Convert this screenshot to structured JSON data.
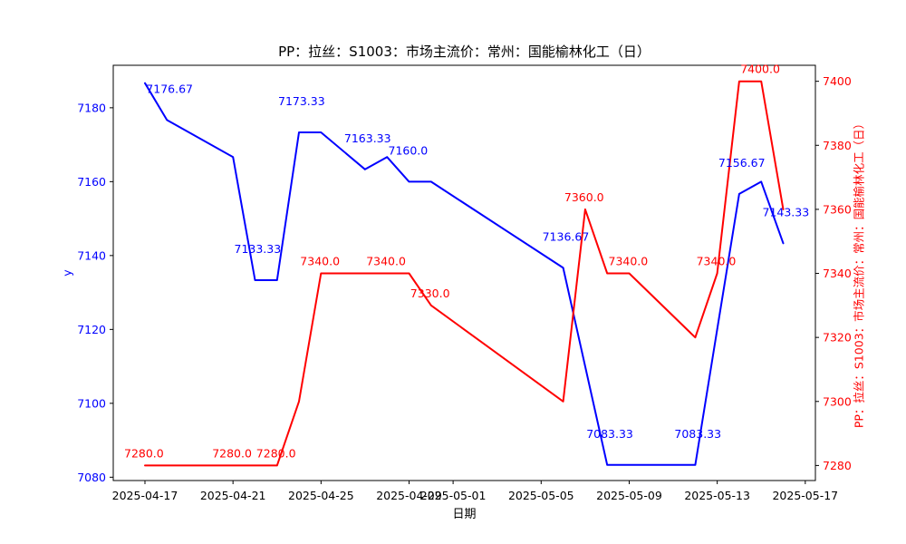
{
  "chart_data": {
    "type": "line",
    "title": "PP：拉丝：S1003：市场主流价：常州：国能榆林化工（日）",
    "xlabel": "日期",
    "ylabel_left": "y",
    "ylabel_right": "PP：拉丝：S1003：市场主流价：常州：国能榆林化工（日）",
    "grid": false,
    "legend_position": "none",
    "x_tick_labels": [
      "2025-04-17",
      "2025-04-21",
      "2025-04-25",
      "2025-04-29",
      "2025-05-01",
      "2025-05-05",
      "2025-05-09",
      "2025-05-13",
      "2025-05-17"
    ],
    "y_ticks_left": [
      7080,
      7100,
      7120,
      7140,
      7160,
      7180
    ],
    "y_ticks_right": [
      7280,
      7300,
      7320,
      7340,
      7360,
      7380,
      7400
    ],
    "ylim_left": [
      7079.1,
      7191.5
    ],
    "ylim_right": [
      7275.3,
      7405.0
    ],
    "xlim_days": [
      -1.44,
      30.46
    ],
    "x": [
      "2025-04-17",
      "2025-04-18",
      "2025-04-21",
      "2025-04-22",
      "2025-04-23",
      "2025-04-24",
      "2025-04-25",
      "2025-04-27",
      "2025-04-28",
      "2025-04-29",
      "2025-04-30",
      "2025-05-06",
      "2025-05-07",
      "2025-05-08",
      "2025-05-09",
      "2025-05-12",
      "2025-05-13",
      "2025-05-14",
      "2025-05-15",
      "2025-05-16"
    ],
    "series": [
      {
        "name": "y",
        "axis": "left",
        "color": "#0000FF",
        "values": [
          7186.67,
          7176.67,
          7166.67,
          7133.33,
          7133.33,
          7173.33,
          7173.33,
          7163.33,
          7166.67,
          7160.0,
          7160.0,
          7136.67,
          7110.0,
          7083.33,
          7083.33,
          7083.33,
          7120.0,
          7156.67,
          7160.0,
          7143.33
        ]
      },
      {
        "name": "PP：拉丝：S1003：市场主流价：常州：国能榆林化工（日）",
        "axis": "right",
        "color": "#FF0000",
        "values": [
          7280.0,
          7280.0,
          7280.0,
          7280.0,
          7280.0,
          7300.0,
          7340.0,
          7340.0,
          7340.0,
          7340.0,
          7330.0,
          7300.0,
          7360.0,
          7340.0,
          7340.0,
          7320.0,
          7340.0,
          7400.0,
          7400.0,
          7360.0
        ]
      }
    ],
    "annotations": [
      {
        "series": 0,
        "date": "2025-04-18",
        "label": "7176.67"
      },
      {
        "series": 0,
        "date": "2025-04-22",
        "label": "7133.33"
      },
      {
        "series": 0,
        "date": "2025-04-24",
        "label": "7173.33"
      },
      {
        "series": 0,
        "date": "2025-04-27",
        "label": "7163.33"
      },
      {
        "series": 0,
        "date": "2025-04-29",
        "label": "7160.0"
      },
      {
        "series": 0,
        "date": "2025-05-06",
        "label": "7136.67"
      },
      {
        "series": 0,
        "date": "2025-05-08",
        "label": "7083.33"
      },
      {
        "series": 0,
        "date": "2025-05-12",
        "label": "7083.33"
      },
      {
        "series": 0,
        "date": "2025-05-14",
        "label": "7156.67"
      },
      {
        "series": 0,
        "date": "2025-05-16",
        "label": "7143.33"
      },
      {
        "series": 1,
        "date": "2025-04-17",
        "label": "7280.0"
      },
      {
        "series": 1,
        "date": "2025-04-21",
        "label": "7280.0"
      },
      {
        "series": 1,
        "date": "2025-04-23",
        "label": "7280.0"
      },
      {
        "series": 1,
        "date": "2025-04-25",
        "label": "7340.0"
      },
      {
        "series": 1,
        "date": "2025-04-28",
        "label": "7340.0"
      },
      {
        "series": 1,
        "date": "2025-04-30",
        "label": "7330.0"
      },
      {
        "series": 1,
        "date": "2025-05-07",
        "label": "7360.0"
      },
      {
        "series": 1,
        "date": "2025-05-09",
        "label": "7340.0"
      },
      {
        "series": 1,
        "date": "2025-05-13",
        "label": "7340.0"
      },
      {
        "series": 1,
        "date": "2025-05-15",
        "label": "7400.0"
      }
    ],
    "axis_color": "#000000",
    "left_tick_label_color": "#0000FF",
    "right_tick_label_color": "#FF0000",
    "x_tick_label_color": "#000000"
  }
}
